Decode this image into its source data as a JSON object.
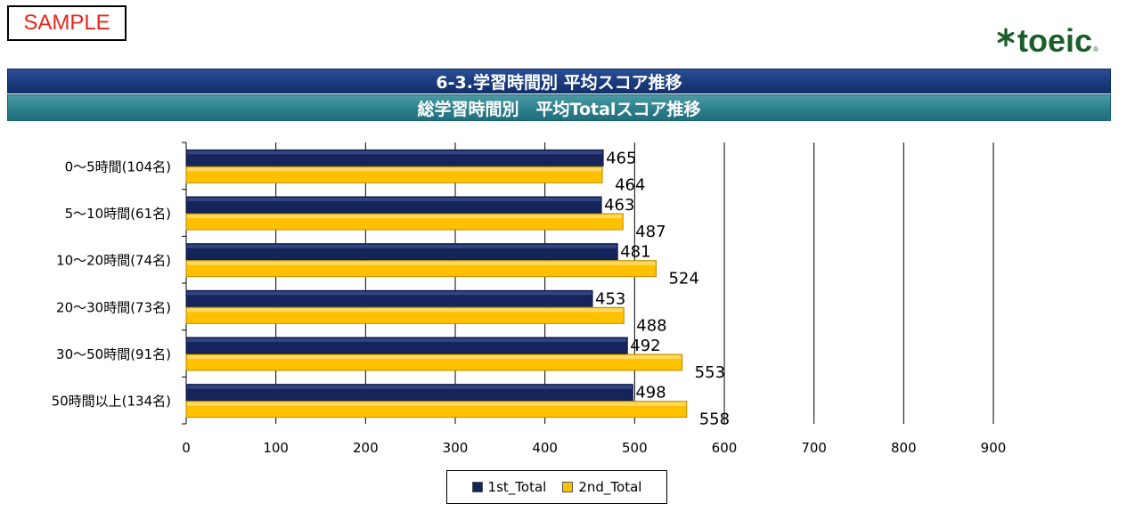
{
  "header": {
    "sample_label": "SAMPLE",
    "logo_text": "toeic",
    "logo_mark": "®",
    "title": "6-3.学習時間別 平均スコア推移",
    "subtitle": "総学習時間別　平均Totalスコア推移"
  },
  "colors": {
    "series1": "#16245c",
    "series2": "#ffc000",
    "grid": "#000000"
  },
  "chart_data": {
    "type": "bar",
    "orientation": "horizontal",
    "title": "総学習時間別　平均Totalスコア推移",
    "xlabel": "",
    "ylabel": "",
    "xlim": [
      0,
      900
    ],
    "ticks": [
      0,
      100,
      200,
      300,
      400,
      500,
      600,
      700,
      800,
      900
    ],
    "categories": [
      "0～5時間(104名)",
      "5～10時間(61名)",
      "10～20時間(74名)",
      "20～30時間(73名)",
      "30～50時間(91名)",
      "50時間以上(134名)"
    ],
    "series": [
      {
        "name": "1st_Total",
        "values": [
          465,
          463,
          481,
          453,
          492,
          498
        ]
      },
      {
        "name": "2nd_Total",
        "values": [
          464,
          487,
          524,
          488,
          553,
          558
        ]
      }
    ],
    "legend_position": "bottom",
    "grid": true
  }
}
